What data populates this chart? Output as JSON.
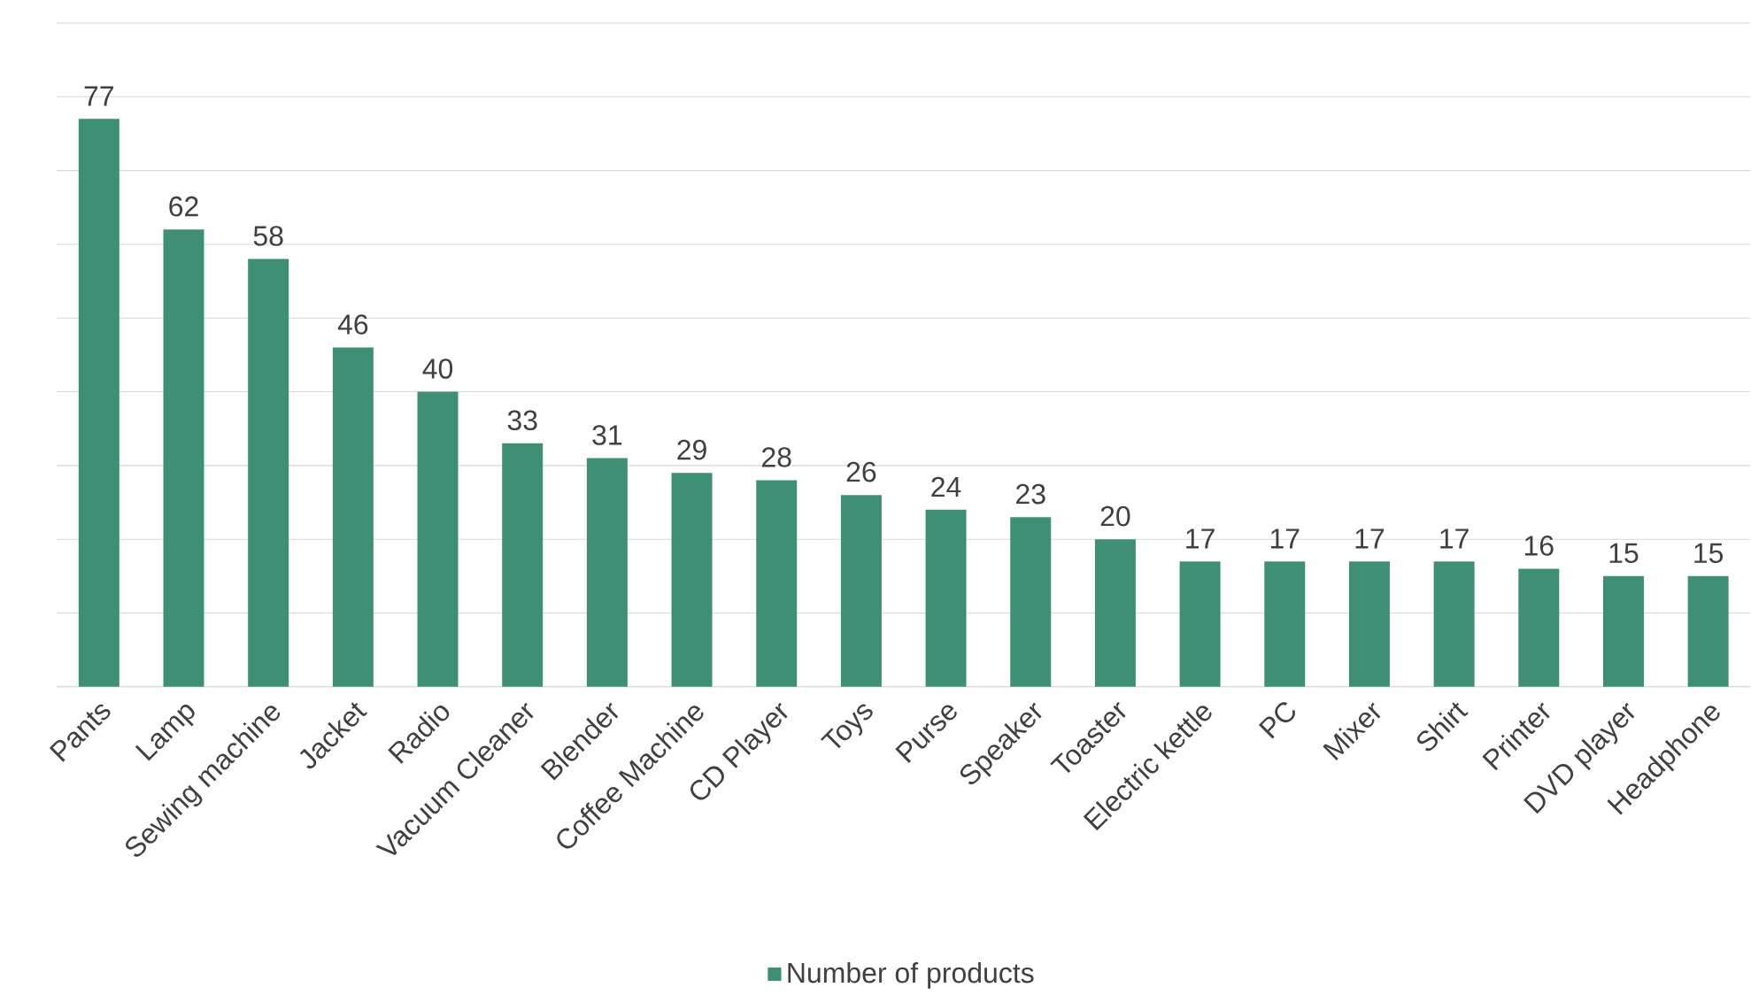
{
  "chart_data": {
    "type": "bar",
    "categories": [
      "Pants",
      "Lamp",
      "Sewing machine",
      "Jacket",
      "Radio",
      "Vacuum Cleaner",
      "Blender",
      "Coffee Machine",
      "CD Player",
      "Toys",
      "Purse",
      "Speaker",
      "Toaster",
      "Electric kettle",
      "PC",
      "Mixer",
      "Shirt",
      "Printer",
      "DVD player",
      "Headphone"
    ],
    "series": [
      {
        "name": "Number of products",
        "color": "#3f8f77",
        "values": [
          77,
          62,
          58,
          46,
          40,
          33,
          31,
          29,
          28,
          26,
          24,
          23,
          20,
          17,
          17,
          17,
          17,
          16,
          15,
          15
        ]
      }
    ],
    "ylim": [
      0,
      90
    ],
    "yticks": [
      {
        "value": 0,
        "label": null
      },
      {
        "value": 10,
        "label": null
      },
      {
        "value": 20,
        "label": null
      },
      {
        "value": 30,
        "label": null
      },
      {
        "value": 40,
        "label": null
      },
      {
        "value": 50,
        "label": null
      },
      {
        "value": 60,
        "label": null
      },
      {
        "value": 70,
        "label": null
      },
      {
        "value": 80,
        "label": null
      },
      {
        "value": 90,
        "label": null
      }
    ],
    "tick_labels": "x",
    "grid": "y",
    "data_labels": true,
    "legend": "bottom"
  }
}
